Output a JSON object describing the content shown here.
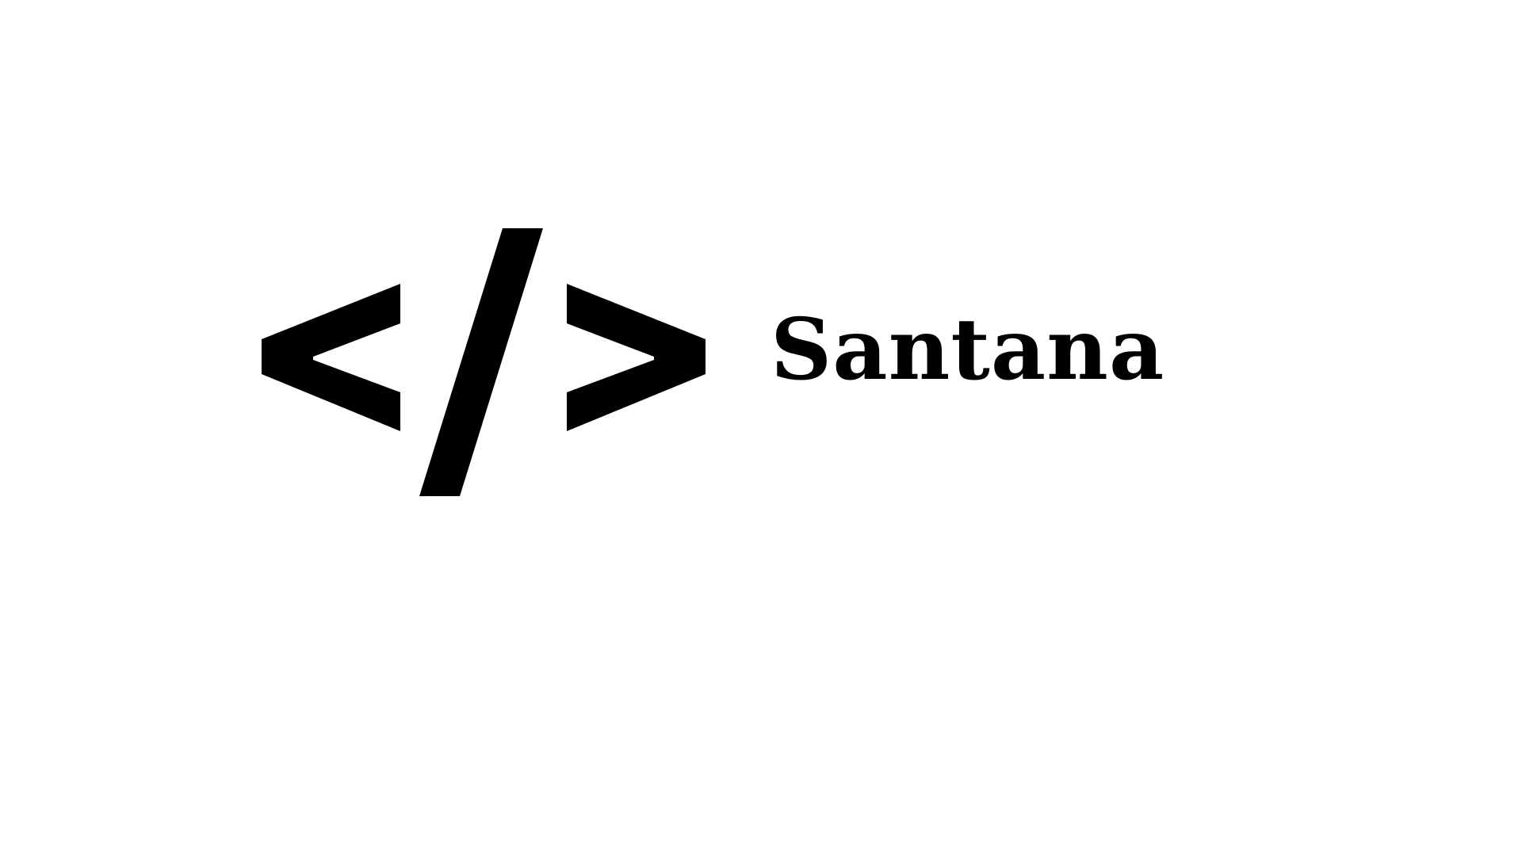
{
  "logo": {
    "icon": "code-brackets-icon",
    "brand_name": "Santana",
    "color": "#000000",
    "background": "#ffffff"
  }
}
